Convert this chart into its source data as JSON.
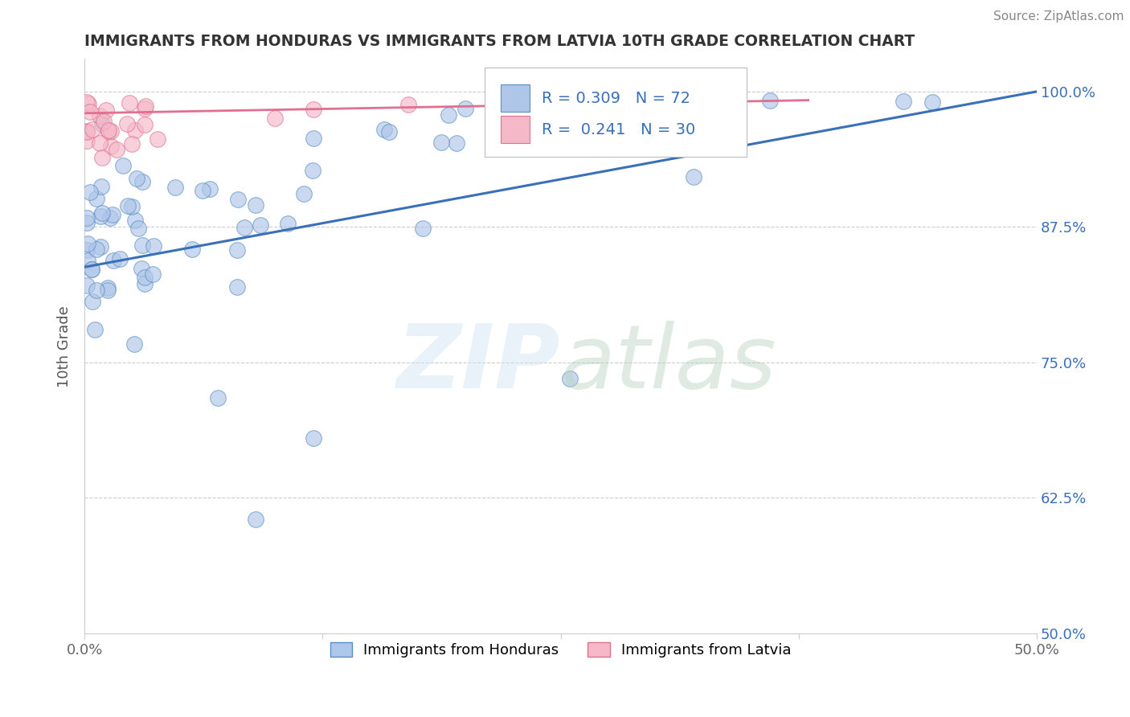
{
  "title": "IMMIGRANTS FROM HONDURAS VS IMMIGRANTS FROM LATVIA 10TH GRADE CORRELATION CHART",
  "source": "Source: ZipAtlas.com",
  "ylabel": "10th Grade",
  "xlim": [
    0.0,
    0.5
  ],
  "ylim": [
    0.5,
    1.03
  ],
  "xtick_labels": [
    "0.0%",
    "",
    "",
    "",
    "50.0%"
  ],
  "xtick_values": [
    0.0,
    0.125,
    0.25,
    0.375,
    0.5
  ],
  "ytick_labels": [
    "50.0%",
    "62.5%",
    "75.0%",
    "87.5%",
    "100.0%"
  ],
  "ytick_values": [
    0.5,
    0.625,
    0.75,
    0.875,
    1.0
  ],
  "honduras_color": "#aec6e8",
  "latvia_color": "#f5b8c8",
  "honduras_edge": "#5b8ec4",
  "latvia_edge": "#e07090",
  "trend_honduras_color": "#3a6fba",
  "trend_latvia_color": "#e07090",
  "R_honduras": 0.309,
  "N_honduras": 72,
  "R_latvia": 0.241,
  "N_latvia": 30,
  "legend_text_color": "#3a6fba",
  "ytick_color": "#3a6fba",
  "background_color": "#ffffff",
  "trend_h_x0": 0.0,
  "trend_h_y0": 0.838,
  "trend_h_x1": 0.5,
  "trend_h_y1": 1.0,
  "trend_l_x0": 0.0,
  "trend_l_y0": 0.98,
  "trend_l_x1": 0.38,
  "trend_l_y1": 0.992
}
